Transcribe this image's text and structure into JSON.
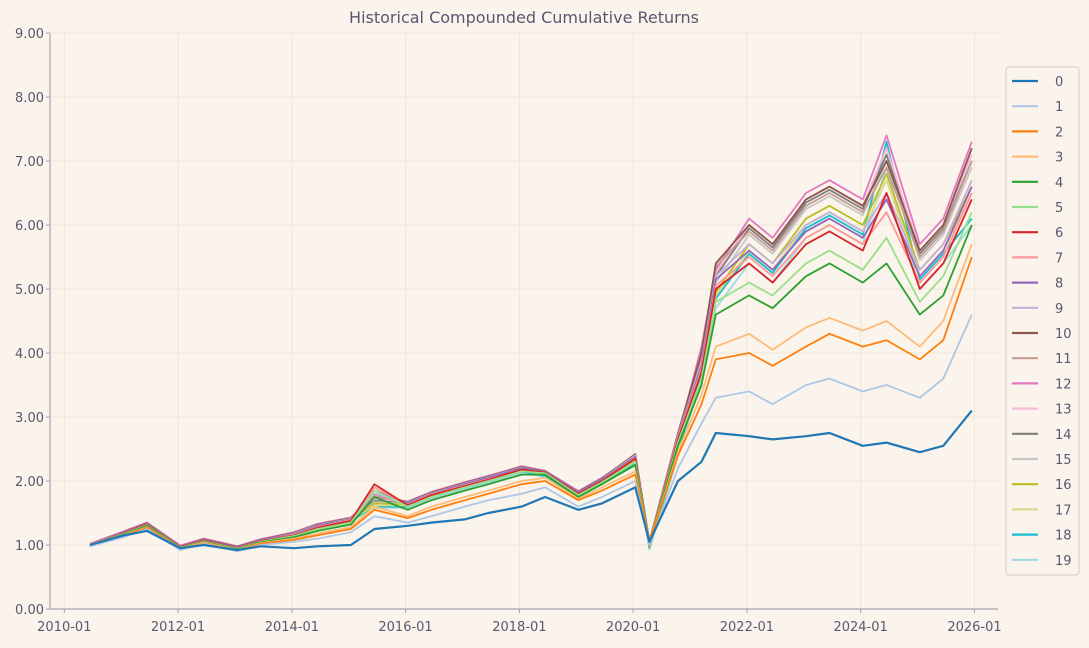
{
  "chart_data": {
    "type": "line",
    "title": "Historical Compounded Cumulative Returns",
    "xlabel": "",
    "ylabel": "",
    "x_range": [
      "2009-10-01",
      "2026-06-01"
    ],
    "ylim": [
      0,
      9
    ],
    "y_ticks": [
      0,
      1,
      2,
      3,
      4,
      5,
      6,
      7,
      8,
      9
    ],
    "y_tick_labels": [
      "0.00",
      "1.00",
      "2.00",
      "3.00",
      "4.00",
      "5.00",
      "6.00",
      "7.00",
      "8.00",
      "9.00"
    ],
    "x_ticks": [
      "2010-01-01",
      "2012-01-01",
      "2014-01-01",
      "2016-01-01",
      "2018-01-01",
      "2020-01-01",
      "2022-01-01",
      "2024-01-01",
      "2026-01-01"
    ],
    "x_tick_labels": [
      "2010-01",
      "2012-01",
      "2014-01",
      "2016-01",
      "2018-01",
      "2020-01",
      "2022-01",
      "2024-01",
      "2026-01"
    ],
    "grid": true,
    "legend_position": "right",
    "dates": [
      "2010-06",
      "2011-01",
      "2011-06",
      "2012-01",
      "2012-06",
      "2013-01",
      "2013-06",
      "2014-01",
      "2014-06",
      "2015-01",
      "2015-06",
      "2016-01",
      "2016-06",
      "2017-01",
      "2017-06",
      "2018-01",
      "2018-06",
      "2019-01",
      "2019-06",
      "2020-01",
      "2020-04",
      "2020-10",
      "2021-03",
      "2021-06",
      "2022-01",
      "2022-06",
      "2023-01",
      "2023-06",
      "2024-01",
      "2024-06",
      "2025-01",
      "2025-06",
      "2025-12"
    ],
    "series": [
      {
        "name": "0",
        "color": "#1f77b4",
        "values": [
          1.0,
          1.15,
          1.22,
          0.95,
          1.0,
          0.92,
          0.98,
          0.95,
          0.98,
          1.0,
          1.25,
          1.3,
          1.35,
          1.4,
          1.5,
          1.6,
          1.75,
          1.55,
          1.65,
          1.9,
          1.05,
          2.0,
          2.3,
          2.75,
          2.7,
          2.65,
          2.7,
          2.75,
          2.55,
          2.6,
          2.45,
          2.55,
          3.1
        ]
      },
      {
        "name": "1",
        "color": "#aec7e8",
        "values": [
          0.98,
          1.12,
          1.25,
          0.92,
          1.02,
          0.9,
          1.0,
          1.05,
          1.1,
          1.2,
          1.45,
          1.35,
          1.45,
          1.6,
          1.7,
          1.8,
          1.9,
          1.6,
          1.75,
          2.0,
          1.0,
          2.2,
          2.9,
          3.3,
          3.4,
          3.2,
          3.5,
          3.6,
          3.4,
          3.5,
          3.3,
          3.6,
          4.6
        ]
      },
      {
        "name": "2",
        "color": "#ff7f0e",
        "values": [
          0.99,
          1.14,
          1.27,
          0.93,
          1.03,
          0.91,
          1.02,
          1.08,
          1.15,
          1.25,
          1.55,
          1.42,
          1.55,
          1.7,
          1.8,
          1.95,
          2.0,
          1.7,
          1.85,
          2.1,
          1.05,
          2.4,
          3.2,
          3.9,
          4.0,
          3.8,
          4.1,
          4.3,
          4.1,
          4.2,
          3.9,
          4.2,
          5.5
        ]
      },
      {
        "name": "3",
        "color": "#ffbb78",
        "values": [
          0.99,
          1.15,
          1.28,
          0.94,
          1.04,
          0.92,
          1.03,
          1.1,
          1.18,
          1.28,
          1.6,
          1.45,
          1.6,
          1.75,
          1.85,
          2.0,
          2.05,
          1.72,
          1.9,
          2.15,
          1.05,
          2.45,
          3.35,
          4.1,
          4.3,
          4.05,
          4.4,
          4.55,
          4.35,
          4.5,
          4.1,
          4.5,
          5.7
        ]
      },
      {
        "name": "4",
        "color": "#2ca02c",
        "values": [
          1.0,
          1.16,
          1.3,
          0.95,
          1.05,
          0.93,
          1.04,
          1.12,
          1.22,
          1.32,
          1.75,
          1.55,
          1.7,
          1.85,
          1.95,
          2.1,
          2.1,
          1.75,
          1.95,
          2.25,
          1.05,
          2.55,
          3.5,
          4.6,
          4.9,
          4.7,
          5.2,
          5.4,
          5.1,
          5.4,
          4.6,
          4.9,
          6.0
        ]
      },
      {
        "name": "5",
        "color": "#98df8a",
        "values": [
          1.0,
          1.17,
          1.31,
          0.96,
          1.06,
          0.94,
          1.05,
          1.14,
          1.25,
          1.35,
          1.85,
          1.6,
          1.75,
          1.9,
          2.0,
          2.15,
          2.12,
          1.78,
          1.98,
          2.3,
          1.05,
          2.6,
          3.6,
          4.8,
          5.1,
          4.9,
          5.4,
          5.6,
          5.3,
          5.8,
          4.8,
          5.2,
          6.2
        ]
      },
      {
        "name": "6",
        "color": "#d62728",
        "values": [
          1.0,
          1.18,
          1.32,
          0.97,
          1.07,
          0.95,
          1.06,
          1.15,
          1.27,
          1.38,
          1.95,
          1.62,
          1.78,
          1.92,
          2.02,
          2.18,
          2.13,
          1.8,
          2.0,
          2.35,
          1.05,
          2.65,
          3.7,
          5.0,
          5.4,
          5.1,
          5.7,
          5.9,
          5.6,
          6.5,
          5.0,
          5.4,
          6.4
        ]
      },
      {
        "name": "7",
        "color": "#ff9896",
        "values": [
          1.01,
          1.18,
          1.32,
          0.97,
          1.07,
          0.95,
          1.06,
          1.16,
          1.28,
          1.39,
          1.9,
          1.63,
          1.79,
          1.93,
          2.03,
          2.18,
          2.13,
          1.8,
          2.0,
          2.36,
          1.05,
          2.68,
          3.75,
          5.05,
          5.5,
          5.2,
          5.8,
          6.0,
          5.7,
          6.2,
          5.1,
          5.5,
          6.5
        ]
      },
      {
        "name": "8",
        "color": "#9467bd",
        "values": [
          1.01,
          1.19,
          1.33,
          0.98,
          1.08,
          0.96,
          1.07,
          1.17,
          1.3,
          1.4,
          1.85,
          1.65,
          1.8,
          1.95,
          2.05,
          2.2,
          2.14,
          1.82,
          2.02,
          2.38,
          1.05,
          2.7,
          3.8,
          5.15,
          5.6,
          5.3,
          5.9,
          6.1,
          5.8,
          6.4,
          5.2,
          5.6,
          6.6
        ]
      },
      {
        "name": "9",
        "color": "#c5b0d5",
        "values": [
          1.01,
          1.19,
          1.33,
          0.98,
          1.08,
          0.96,
          1.07,
          1.18,
          1.31,
          1.41,
          1.8,
          1.66,
          1.81,
          1.96,
          2.06,
          2.21,
          2.14,
          1.82,
          2.03,
          2.4,
          1.05,
          2.72,
          3.85,
          5.2,
          5.7,
          5.4,
          6.0,
          6.2,
          5.9,
          6.5,
          5.3,
          5.7,
          6.7
        ]
      },
      {
        "name": "10",
        "color": "#8c564b",
        "values": [
          1.01,
          1.2,
          1.34,
          0.98,
          1.09,
          0.97,
          1.08,
          1.19,
          1.32,
          1.42,
          1.8,
          1.67,
          1.82,
          1.97,
          2.07,
          2.22,
          2.15,
          1.83,
          2.04,
          2.42,
          1.05,
          2.75,
          4.0,
          5.4,
          6.0,
          5.7,
          6.4,
          6.6,
          6.3,
          7.0,
          5.6,
          6.0,
          7.2
        ]
      },
      {
        "name": "11",
        "color": "#c49c94",
        "values": [
          1.01,
          1.2,
          1.34,
          0.98,
          1.09,
          0.97,
          1.08,
          1.19,
          1.32,
          1.42,
          1.78,
          1.67,
          1.82,
          1.97,
          2.07,
          2.22,
          2.15,
          1.83,
          2.04,
          2.41,
          1.05,
          2.74,
          3.95,
          5.35,
          5.9,
          5.6,
          6.3,
          6.5,
          6.2,
          6.9,
          5.5,
          5.9,
          7.0
        ]
      },
      {
        "name": "12",
        "color": "#e377c2",
        "values": [
          1.02,
          1.21,
          1.35,
          0.99,
          1.1,
          0.98,
          1.09,
          1.2,
          1.33,
          1.43,
          1.75,
          1.68,
          1.83,
          1.98,
          2.08,
          2.23,
          2.16,
          1.84,
          2.05,
          2.4,
          1.0,
          2.7,
          4.1,
          5.3,
          6.1,
          5.8,
          6.5,
          6.7,
          6.4,
          7.4,
          5.7,
          6.1,
          7.3
        ]
      },
      {
        "name": "13",
        "color": "#f7b6d2",
        "values": [
          1.02,
          1.21,
          1.35,
          0.99,
          1.1,
          0.98,
          1.09,
          1.2,
          1.33,
          1.43,
          1.72,
          1.68,
          1.83,
          1.98,
          2.08,
          2.23,
          2.16,
          1.84,
          2.05,
          2.38,
          1.0,
          2.68,
          4.05,
          5.25,
          6.0,
          5.7,
          6.4,
          6.6,
          6.3,
          7.2,
          5.6,
          6.0,
          7.1
        ]
      },
      {
        "name": "14",
        "color": "#7f7f7f",
        "values": [
          1.02,
          1.21,
          1.35,
          0.99,
          1.1,
          0.98,
          1.09,
          1.2,
          1.33,
          1.43,
          1.7,
          1.67,
          1.82,
          1.97,
          2.07,
          2.22,
          2.15,
          1.83,
          2.04,
          2.36,
          0.98,
          2.65,
          4.0,
          5.2,
          5.95,
          5.65,
          6.35,
          6.55,
          6.25,
          7.1,
          5.55,
          5.95,
          7.0
        ]
      },
      {
        "name": "15",
        "color": "#c7c7c7",
        "values": [
          1.01,
          1.2,
          1.34,
          0.98,
          1.09,
          0.97,
          1.08,
          1.19,
          1.32,
          1.42,
          1.68,
          1.66,
          1.81,
          1.96,
          2.06,
          2.21,
          2.14,
          1.82,
          2.03,
          2.34,
          0.98,
          2.6,
          3.95,
          5.1,
          5.85,
          5.55,
          6.25,
          6.45,
          6.15,
          7.0,
          5.45,
          5.85,
          6.9
        ]
      },
      {
        "name": "16",
        "color": "#bcbd22",
        "values": [
          1.0,
          1.19,
          1.33,
          0.97,
          1.08,
          0.96,
          1.07,
          1.18,
          1.3,
          1.4,
          1.65,
          1.64,
          1.79,
          1.94,
          2.04,
          2.19,
          2.12,
          1.8,
          2.01,
          2.32,
          0.97,
          2.55,
          3.85,
          4.95,
          5.7,
          5.4,
          6.1,
          6.3,
          6.0,
          6.8,
          5.3,
          5.7,
          6.6
        ]
      },
      {
        "name": "17",
        "color": "#dbdb8d",
        "values": [
          1.0,
          1.18,
          1.32,
          0.96,
          1.07,
          0.95,
          1.06,
          1.17,
          1.29,
          1.39,
          1.62,
          1.62,
          1.77,
          1.92,
          2.02,
          2.17,
          2.1,
          1.78,
          1.99,
          2.3,
          0.96,
          2.5,
          3.8,
          4.9,
          5.6,
          5.3,
          6.0,
          6.2,
          5.9,
          6.7,
          5.2,
          5.6,
          6.5
        ]
      },
      {
        "name": "18",
        "color": "#17becf",
        "values": [
          0.99,
          1.17,
          1.31,
          0.95,
          1.06,
          0.94,
          1.05,
          1.16,
          1.28,
          1.38,
          1.6,
          1.6,
          1.75,
          1.9,
          2.0,
          2.15,
          2.08,
          1.76,
          1.97,
          2.28,
          0.95,
          2.45,
          3.7,
          4.85,
          5.55,
          5.25,
          5.95,
          6.15,
          5.85,
          7.3,
          5.15,
          5.55,
          6.1
        ]
      },
      {
        "name": "19",
        "color": "#9edae5",
        "values": [
          0.98,
          1.16,
          1.3,
          0.94,
          1.05,
          0.93,
          1.04,
          1.15,
          1.27,
          1.37,
          1.58,
          1.58,
          1.73,
          1.88,
          1.98,
          2.13,
          2.06,
          1.74,
          1.95,
          2.25,
          0.93,
          2.4,
          3.6,
          4.7,
          5.4,
          5.1,
          5.8,
          6.0,
          5.7,
          6.9,
          5.0,
          5.4,
          6.0
        ]
      }
    ]
  }
}
